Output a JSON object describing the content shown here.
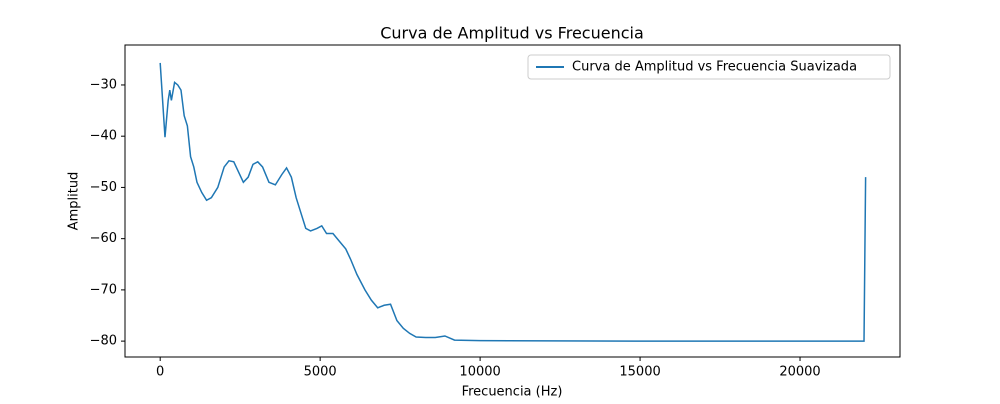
{
  "chart_data": {
    "type": "line",
    "title": "Curva de Amplitud vs Frecuencia",
    "x_label": "Frecuencia (Hz)",
    "y_label": "Amplitud",
    "legend": "upper right",
    "series": [
      {
        "name": "Curva de Amplitud vs Frecuencia Suavizada",
        "color": "#1f77b4",
        "x": [
          0,
          150,
          250,
          300,
          350,
          450,
          550,
          650,
          750,
          850,
          950,
          1050,
          1150,
          1300,
          1450,
          1600,
          1800,
          2000,
          2150,
          2300,
          2450,
          2600,
          2750,
          2900,
          3050,
          3200,
          3400,
          3600,
          3800,
          3950,
          4100,
          4250,
          4400,
          4550,
          4700,
          4900,
          5050,
          5200,
          5400,
          5600,
          5800,
          5950,
          6150,
          6400,
          6600,
          6800,
          7000,
          7200,
          7400,
          7600,
          7800,
          8000,
          8300,
          8600,
          8900,
          9200,
          10000,
          15000,
          22000,
          22050
        ],
        "values": [
          -25.7,
          -40.2,
          -33,
          -31,
          -33,
          -29.5,
          -30,
          -31,
          -36,
          -38,
          -44,
          -46,
          -49,
          -51,
          -52.5,
          -52,
          -50,
          -46,
          -44.8,
          -45,
          -47,
          -49,
          -48,
          -45.5,
          -45,
          -46,
          -49,
          -49.5,
          -47.5,
          -46.2,
          -48,
          -52,
          -55,
          -58,
          -58.5,
          -58,
          -57.5,
          -59,
          -59,
          -60.5,
          -62,
          -64,
          -67,
          -70,
          -72,
          -73.5,
          -73,
          -72.8,
          -76,
          -77.5,
          -78.5,
          -79.2,
          -79.3,
          -79.3,
          -79,
          -79.8,
          -79.9,
          -80,
          -80,
          -48
        ]
      }
    ],
    "xlim": [
      -1100,
      23125
    ],
    "ylim": [
      -83.1,
      -22.2
    ],
    "xticks": [
      0,
      5000,
      10000,
      15000,
      20000
    ],
    "yticks": [
      {
        "value": -30,
        "label": "−30"
      },
      {
        "value": -40,
        "label": "−40"
      },
      {
        "value": -50,
        "label": "−50"
      },
      {
        "value": -60,
        "label": "−60"
      },
      {
        "value": -70,
        "label": "−70"
      },
      {
        "value": -80,
        "label": "−80"
      }
    ]
  }
}
